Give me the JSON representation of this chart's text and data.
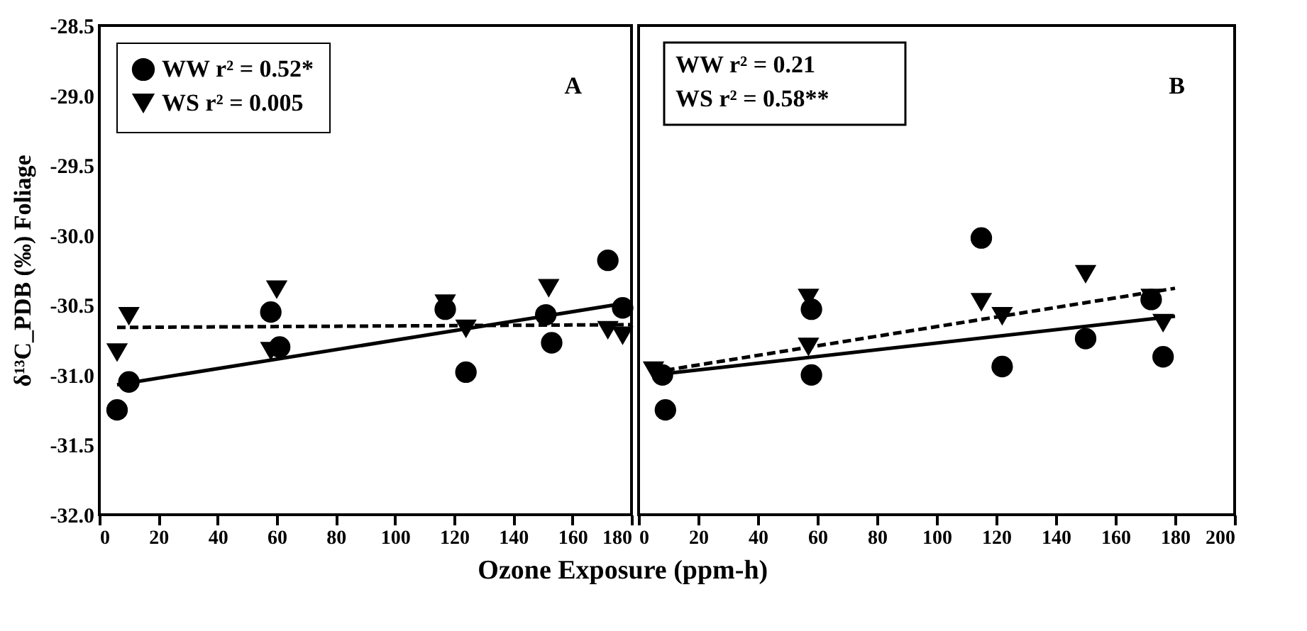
{
  "chart_data": [
    {
      "type": "scatter",
      "ylabel": "δ¹³C_PDB (‰) Foliage",
      "xlabel": "Ozone Exposure (ppm-h)",
      "xlim": [
        0,
        180
      ],
      "xticks": [
        0,
        20,
        40,
        60,
        80,
        100,
        120,
        140,
        160,
        180
      ],
      "ylim": [
        -32.0,
        -28.5
      ],
      "yticks": [
        {
          "value": -32.0,
          "label": "-32.0"
        },
        {
          "value": -31.5,
          "label": "-31.5"
        },
        {
          "value": -31.0,
          "label": "-31.0"
        },
        {
          "value": -30.5,
          "label": "-30.5"
        },
        {
          "value": -30.0,
          "label": "-30.0"
        },
        {
          "value": -29.5,
          "label": "-29.5"
        },
        {
          "value": -29.0,
          "label": "-29.0"
        },
        {
          "value": -28.5,
          "label": "-28.5"
        }
      ],
      "legend": "top left",
      "grid": false,
      "annotations": [
        "A"
      ],
      "series": [
        {
          "name": "WW r² = 0.52*",
          "marker": "circle",
          "color": "#000000",
          "x": [
            6,
            10,
            58,
            61,
            117,
            124,
            151,
            153,
            172,
            177
          ],
          "values": [
            -31.25,
            -31.05,
            -30.55,
            -30.8,
            -30.53,
            -30.98,
            -30.57,
            -30.77,
            -30.18,
            -30.52
          ]
        },
        {
          "name": "WS r² = 0.005",
          "marker": "triangle",
          "color": "#000000",
          "x": [
            6,
            10,
            58,
            60,
            117,
            124,
            152,
            172,
            177
          ],
          "values": [
            -30.84,
            -30.58,
            -30.83,
            -30.39,
            -30.49,
            -30.67,
            -30.38,
            -30.68,
            -30.72
          ]
        },
        {
          "type": "line",
          "line_style": "solid",
          "color": "#000000",
          "x": [
            6,
            180
          ],
          "values": [
            -31.07,
            -30.48
          ]
        },
        {
          "type": "line",
          "line_style": "dashed",
          "color": "#000000",
          "x": [
            6,
            180
          ],
          "values": [
            -30.66,
            -30.64
          ]
        }
      ]
    },
    {
      "type": "scatter",
      "xlim": [
        0,
        200
      ],
      "xticks": [
        0,
        20,
        40,
        60,
        80,
        100,
        120,
        140,
        160,
        180,
        200
      ],
      "ylim": [
        -32.0,
        -28.5
      ],
      "yticks": [
        {
          "value": -32.0,
          "label": null
        },
        {
          "value": -31.5,
          "label": null
        },
        {
          "value": -31.0,
          "label": null
        },
        {
          "value": -30.5,
          "label": null
        },
        {
          "value": -30.0,
          "label": null
        },
        {
          "value": -29.5,
          "label": null
        },
        {
          "value": -29.0,
          "label": null
        },
        {
          "value": -28.5,
          "label": null
        }
      ],
      "tick_labels": "x",
      "grid": false,
      "annotations": [
        "WW r² = 0.21",
        "WS r² = 0.58**",
        "B"
      ],
      "series": [
        {
          "marker": "circle",
          "color": "#000000",
          "x": [
            8,
            9,
            58,
            58,
            115,
            122,
            150,
            172,
            176
          ],
          "values": [
            -31.0,
            -31.25,
            -30.53,
            -31.0,
            -30.02,
            -30.94,
            -30.74,
            -30.46,
            -30.87
          ]
        },
        {
          "marker": "triangle",
          "color": "#000000",
          "x": [
            5,
            57,
            57,
            115,
            122,
            150,
            172,
            176
          ],
          "values": [
            -30.97,
            -30.45,
            -30.8,
            -30.48,
            -30.58,
            -30.28,
            -30.45,
            -30.63
          ]
        },
        {
          "type": "line",
          "line_style": "solid",
          "color": "#000000",
          "x": [
            5,
            180
          ],
          "values": [
            -31.0,
            -30.58
          ]
        },
        {
          "type": "line",
          "line_style": "dashed",
          "color": "#000000",
          "x": [
            5,
            180
          ],
          "values": [
            -30.98,
            -30.38
          ]
        }
      ]
    }
  ]
}
